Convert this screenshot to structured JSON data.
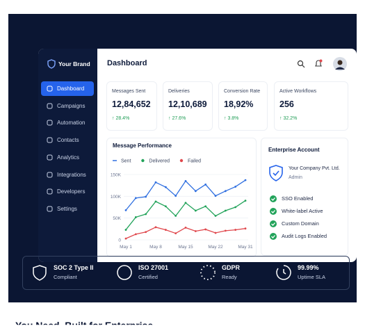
{
  "sidebar": {
    "brand": "Your Brand",
    "nav": [
      "Dashboard",
      "Campaigns",
      "Automation",
      "Contacts",
      "Analytics",
      "Integrations",
      "Developers",
      "Settings"
    ]
  },
  "header": {
    "title": "Dashboard"
  },
  "stats": [
    {
      "label": "Messages Sent",
      "value": "12,84,652",
      "change": "↑ 28.4%"
    },
    {
      "label": "Deliveries",
      "value": "12,10,689",
      "change": "↑ 27.6%"
    },
    {
      "label": "Conversion Rate",
      "value": "18,92%",
      "change": "↑ 3.8%"
    },
    {
      "label": "Active Workflows",
      "value": "256",
      "change": "↑ 32.2%"
    }
  ],
  "chart_data": {
    "type": "line",
    "title": "Message Performance",
    "categories": [
      "May 1",
      null,
      null,
      "May 8",
      null,
      null,
      "May 15",
      null,
      null,
      "May 22",
      null,
      null,
      "May 31"
    ],
    "series": [
      {
        "name": "Sent",
        "color": "#2f6fe0",
        "values": [
          68000,
          96000,
          99000,
          132000,
          121000,
          101000,
          135000,
          112000,
          127000,
          101000,
          112000,
          122000,
          137000
        ]
      },
      {
        "name": "Delivered",
        "color": "#22a35a",
        "values": [
          23000,
          52000,
          59000,
          88000,
          77000,
          55000,
          85000,
          67000,
          77000,
          55000,
          67000,
          75000,
          90000
        ]
      },
      {
        "name": "Failed",
        "color": "#e0484d",
        "values": [
          3000,
          13000,
          18000,
          29000,
          23000,
          15000,
          28000,
          20000,
          24000,
          16000,
          21000,
          23000,
          26000
        ]
      }
    ],
    "ylim": [
      0,
      150000
    ],
    "yticks": [
      0,
      {
        "value": 50000,
        "label": "50K"
      },
      {
        "value": 100000,
        "label": "100K"
      },
      {
        "value": 150000,
        "label": "150K"
      }
    ],
    "grid": true
  },
  "account": {
    "title": "Enterprise Account",
    "company": "Your Company Pvt. Ltd.",
    "role": "Admin",
    "features": [
      "SSO Enabled",
      "White-label Active",
      "Custom Domain",
      "Audit Logs Enabled"
    ]
  },
  "badges": [
    {
      "title": "SOC 2 Type II",
      "sub": "Compliant"
    },
    {
      "title": "ISO 27001",
      "sub": "Certified"
    },
    {
      "title": "GDPR",
      "sub": "Ready"
    },
    {
      "title": "99.99%",
      "sub": "Uptime SLA"
    }
  ],
  "footer": {
    "heading": "You Need, Built for Enterprise"
  }
}
